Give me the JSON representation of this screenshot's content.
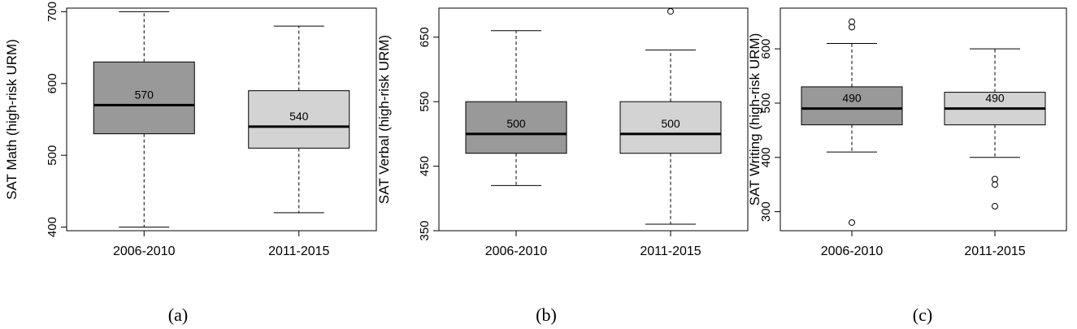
{
  "chart_data": [
    {
      "type": "box",
      "panel_label": "(a)",
      "ylabel": "SAT Math  (high-risk URM)",
      "ylim": [
        395,
        705
      ],
      "yticks": [
        400,
        500,
        600,
        700
      ],
      "categories": [
        "2006-2010",
        "2011-2015"
      ],
      "boxes": [
        {
          "whisker_low": 400,
          "q1": 530,
          "median": 570,
          "q3": 630,
          "whisker_high": 700,
          "outliers": [],
          "median_label": "570",
          "fill": "#999999"
        },
        {
          "whisker_low": 420,
          "q1": 510,
          "median": 540,
          "q3": 590,
          "whisker_high": 680,
          "outliers": [],
          "median_label": "540",
          "fill": "#d3d3d3"
        }
      ]
    },
    {
      "type": "box",
      "panel_label": "(b)",
      "ylabel": "SAT Verbal  (high-risk URM)",
      "ylim": [
        350,
        695
      ],
      "yticks": [
        350,
        450,
        550,
        650
      ],
      "categories": [
        "2006-2010",
        "2011-2015"
      ],
      "boxes": [
        {
          "whisker_low": 420,
          "q1": 470,
          "median": 500,
          "q3": 550,
          "whisker_high": 660,
          "outliers": [],
          "median_label": "500",
          "fill": "#999999"
        },
        {
          "whisker_low": 360,
          "q1": 470,
          "median": 500,
          "q3": 550,
          "whisker_high": 630,
          "outliers": [
            690
          ],
          "median_label": "500",
          "fill": "#d3d3d3"
        }
      ]
    },
    {
      "type": "box",
      "panel_label": "(c)",
      "ylabel": "SAT Writing  (high-risk URM)",
      "ylim": [
        265,
        675
      ],
      "yticks": [
        300,
        400,
        500,
        600
      ],
      "categories": [
        "2006-2010",
        "2011-2015"
      ],
      "boxes": [
        {
          "whisker_low": 410,
          "q1": 460,
          "median": 490,
          "q3": 530,
          "whisker_high": 610,
          "outliers": [
            640,
            650,
            280
          ],
          "median_label": "490",
          "fill": "#999999"
        },
        {
          "whisker_low": 400,
          "q1": 460,
          "median": 490,
          "q3": 520,
          "whisker_high": 600,
          "outliers": [
            360,
            350,
            310
          ],
          "median_label": "490",
          "fill": "#d3d3d3"
        }
      ]
    }
  ]
}
